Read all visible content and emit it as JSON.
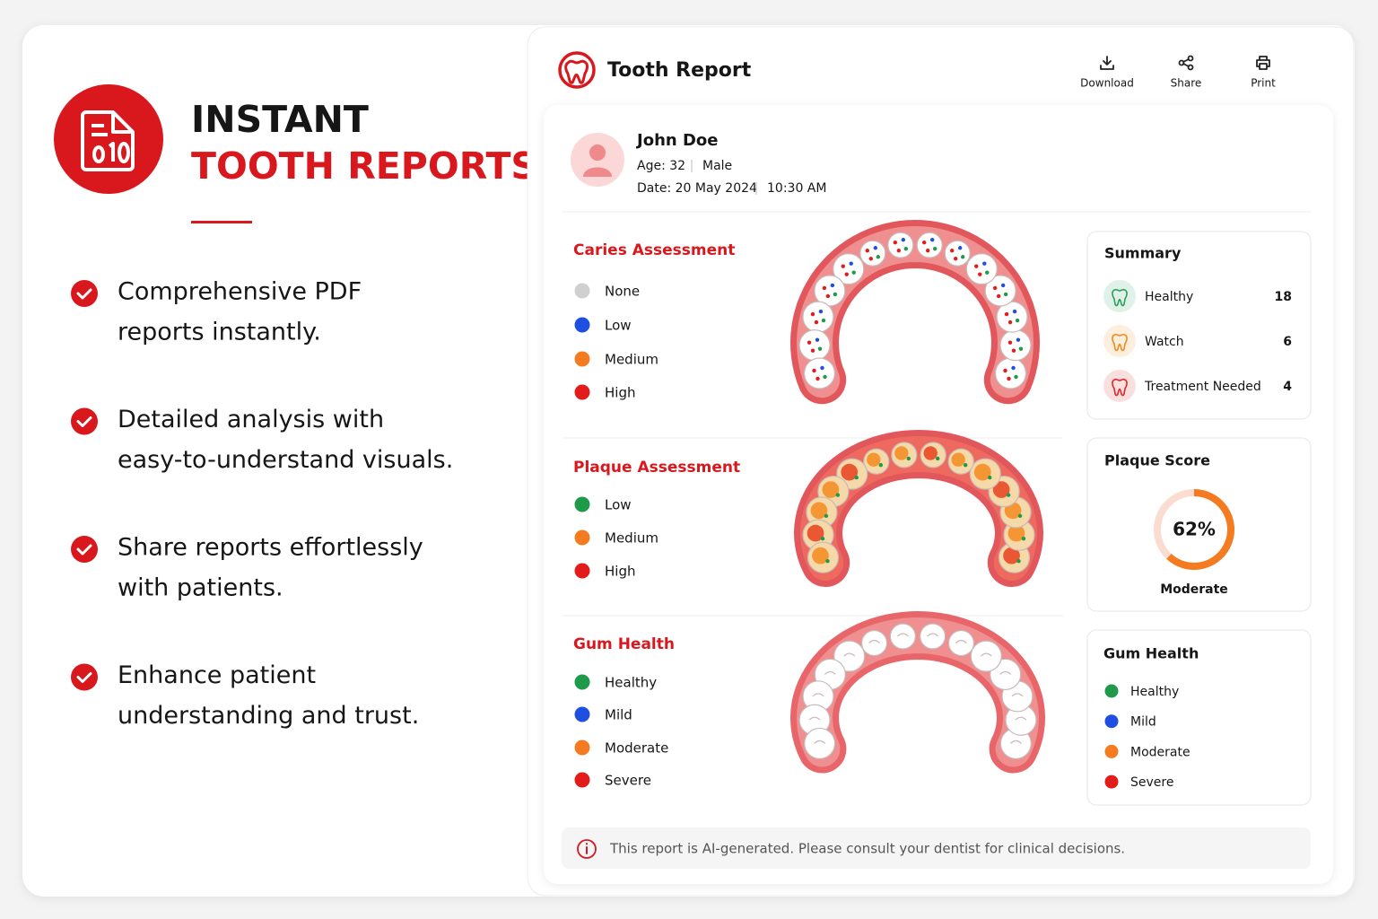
{
  "hero": {
    "title_line1": "INSTANT",
    "title_line2": "TOOTH REPORTS",
    "features": [
      [
        "Comprehensive PDF",
        "reports instantly."
      ],
      [
        "Detailed analysis with",
        "easy-to-understand visuals."
      ],
      [
        "Share reports effortlessly",
        "with patients."
      ],
      [
        "Enhance patient",
        "understanding and trust."
      ]
    ]
  },
  "report": {
    "title": "Tooth Report",
    "actions": [
      "Download",
      "Share",
      "Print"
    ],
    "patient": {
      "name": "John Doe",
      "age": "Age: 32",
      "sex": "Male",
      "date": "Date: 20 May 2024",
      "time": "10:30 AM"
    },
    "sections": [
      {
        "title": "Caries Assessment",
        "legend": [
          {
            "label": "None",
            "color": "#d0d0d0"
          },
          {
            "label": "Low",
            "color": "#1f4fe0"
          },
          {
            "label": "Medium",
            "color": "#f47b20"
          },
          {
            "label": "High",
            "color": "#e31b1b"
          }
        ]
      },
      {
        "title": "Plaque Assessment",
        "legend": [
          {
            "label": "Low",
            "color": "#1e9a48"
          },
          {
            "label": "Medium",
            "color": "#f47b20"
          },
          {
            "label": "High",
            "color": "#e31b1b"
          }
        ]
      },
      {
        "title": "Gum Health",
        "legend": [
          {
            "label": "Healthy",
            "color": "#1e9a48"
          },
          {
            "label": "Mild",
            "color": "#1f4fe0"
          },
          {
            "label": "Moderate",
            "color": "#f47b20"
          },
          {
            "label": "Severe",
            "color": "#e31b1b"
          }
        ]
      }
    ],
    "summary": {
      "title": "Summary",
      "rows": [
        {
          "label": "Healthy",
          "count": 18,
          "color": "#2e9e5b"
        },
        {
          "label": "Watch",
          "count": 6,
          "color": "#f28a1e"
        },
        {
          "label": "Treatment Needed",
          "count": 4,
          "color": "#e0262b"
        }
      ]
    },
    "plaque_score": {
      "title": "Plaque Score",
      "score": {
        "value": 62,
        "label": "62%"
      },
      "rating": "Moderate"
    },
    "gum_health": {
      "title": "Gum Health",
      "legend": [
        {
          "label": "Healthy",
          "color": "#1e9a48"
        },
        {
          "label": "Mild",
          "color": "#1f4fe0"
        },
        {
          "label": "Moderate",
          "color": "#f47b20"
        },
        {
          "label": "Severe",
          "color": "#e31b1b"
        }
      ]
    },
    "disclaimer": "This report is AI-generated. Please consult your dentist for clinical decisions."
  }
}
